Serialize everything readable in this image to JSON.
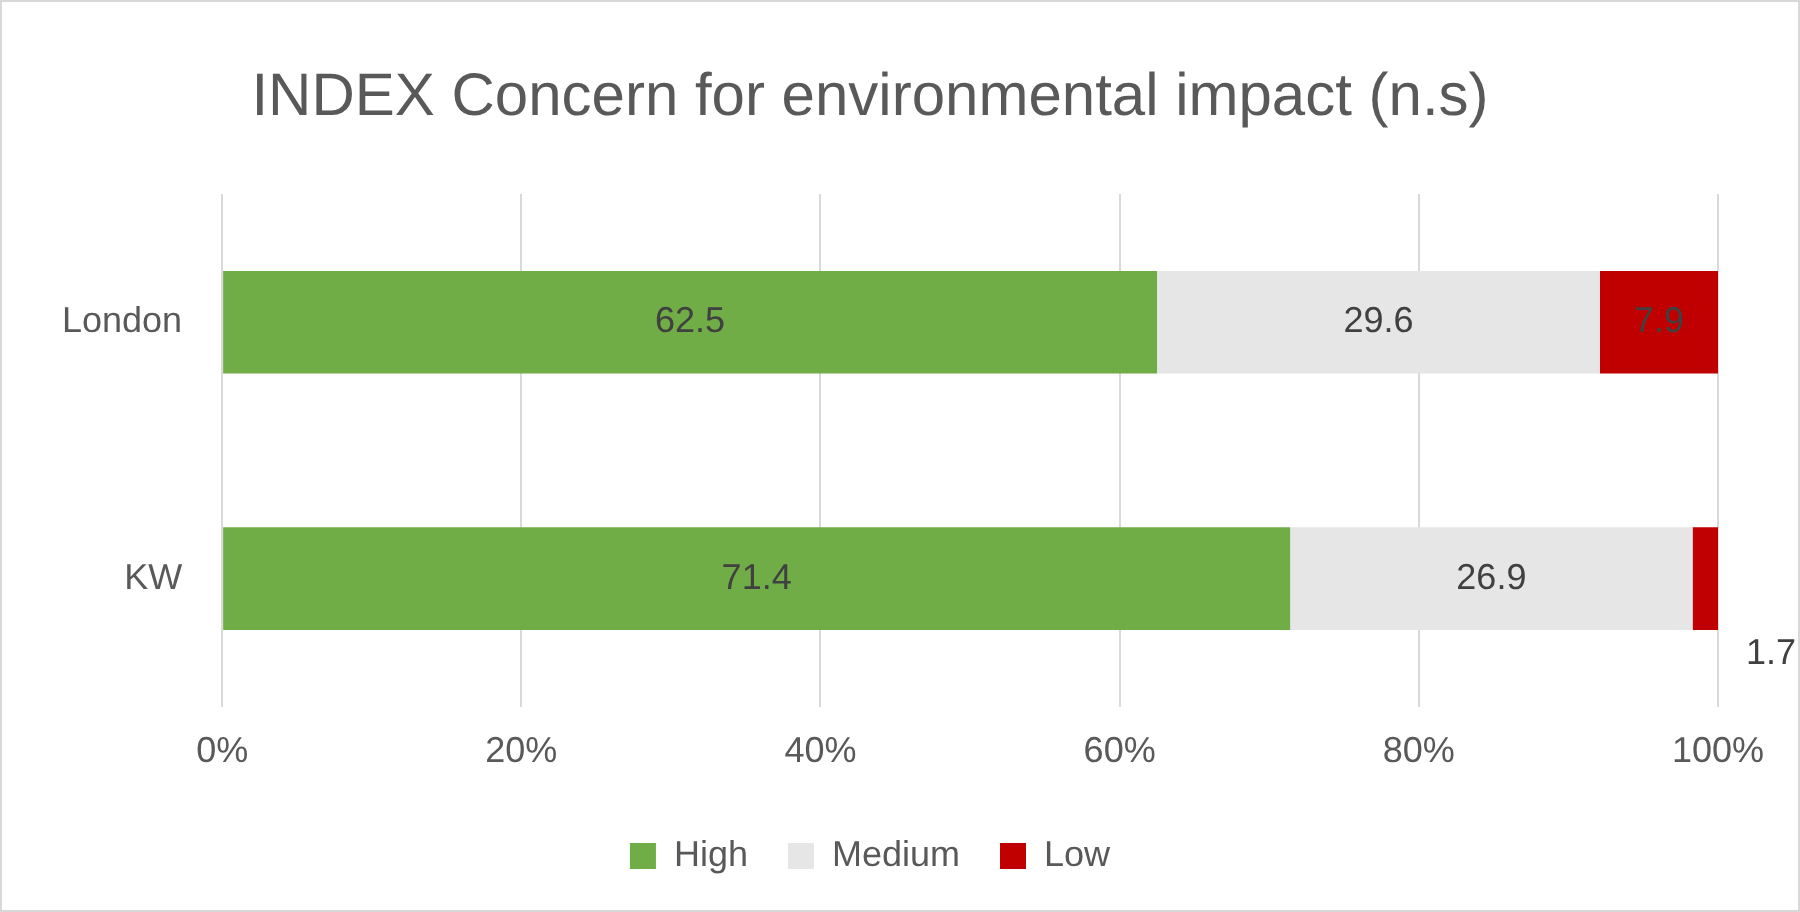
{
  "chart_data": {
    "type": "bar",
    "orientation": "horizontal",
    "stacked": true,
    "title": "INDEX Concern for environmental impact (n.s)",
    "categories": [
      "London",
      "KW"
    ],
    "series": [
      {
        "name": "High",
        "color": "#70ad47",
        "values": [
          62.5,
          71.4
        ]
      },
      {
        "name": "Medium",
        "color": "#e7e6e6",
        "values": [
          29.6,
          26.9
        ]
      },
      {
        "name": "Low",
        "color": "#c00000",
        "values": [
          7.9,
          1.7
        ]
      }
    ],
    "xlim": [
      0,
      100
    ],
    "xticks": [
      {
        "value": 0,
        "label": "0%"
      },
      {
        "value": 20,
        "label": "20%"
      },
      {
        "value": 40,
        "label": "40%"
      },
      {
        "value": 60,
        "label": "60%"
      },
      {
        "value": 80,
        "label": "80%"
      },
      {
        "value": 100,
        "label": "100%"
      }
    ],
    "grid": "x",
    "legend": "bottom",
    "data_labels": true
  }
}
